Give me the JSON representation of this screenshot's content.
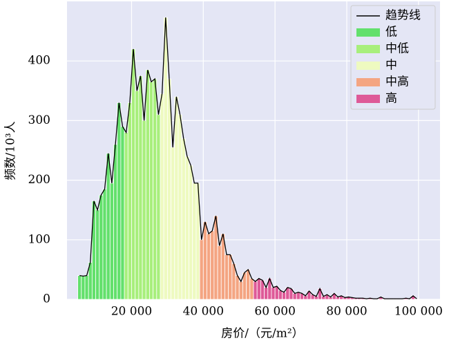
{
  "chart_data": {
    "type": "histogram",
    "xlabel": "房价/（元/m²）",
    "ylabel": "频数/10³人",
    "xlim": [
      2000,
      106000
    ],
    "ylim": [
      0,
      500
    ],
    "xticks": [
      {
        "value": 20000,
        "label": "20 000"
      },
      {
        "value": 40000,
        "label": "40 000"
      },
      {
        "value": 60000,
        "label": "60 000"
      },
      {
        "value": 80000,
        "label": "80 000"
      },
      {
        "value": 100000,
        "label": "100 000"
      }
    ],
    "yticks": [
      0,
      100,
      200,
      300,
      400
    ],
    "grid": true,
    "legend": "upper right",
    "trend": {
      "name": "趋势线",
      "color": "#000000"
    },
    "series": [
      {
        "name": "低",
        "color": "#63e06c",
        "bins": [
          5000,
          6000,
          7000,
          8000,
          9000,
          10000,
          11000,
          12000,
          13000,
          14000,
          15000,
          16000,
          17000,
          18000
        ],
        "values": [
          40,
          39,
          40,
          62,
          165,
          150,
          175,
          185,
          245,
          195,
          260,
          330,
          290
        ]
      },
      {
        "name": "中低",
        "color": "#a8ef7c",
        "bins": [
          18000,
          19000,
          20000,
          21000,
          22000,
          23000,
          24000,
          25000,
          26000,
          27000,
          28000
        ],
        "values": [
          280,
          330,
          420,
          350,
          375,
          300,
          385,
          365,
          370,
          310
        ]
      },
      {
        "name": "中",
        "color": "#eefac0",
        "bins": [
          28000,
          29000,
          30000,
          31000,
          32000,
          33000,
          34000,
          35000,
          36000,
          37000,
          38000,
          39000
        ],
        "values": [
          345,
          473,
          370,
          255,
          340,
          310,
          270,
          240,
          225,
          195,
          195
        ]
      },
      {
        "name": "中高",
        "color": "#f4a582",
        "bins": [
          39000,
          40000,
          41000,
          42000,
          43000,
          44000,
          45000,
          46000,
          47000,
          48000,
          49000,
          50000,
          51000,
          52000,
          53000,
          54000
        ],
        "values": [
          100,
          130,
          110,
          115,
          140,
          90,
          110,
          75,
          75,
          60,
          40,
          30,
          45,
          50,
          35
        ]
      },
      {
        "name": "高",
        "color": "#de5a98",
        "bins": [
          54000,
          55000,
          56000,
          57000,
          58000,
          59000,
          60000,
          61000,
          62000,
          63000,
          64000,
          65000,
          66000,
          67000,
          68000,
          69000,
          70000,
          71000,
          72000,
          73000,
          74000,
          75000,
          76000,
          77000,
          78000,
          79000,
          80000,
          81000,
          82000,
          83000,
          84000,
          85000,
          86000,
          87000,
          88000,
          89000,
          90000,
          91000,
          92000,
          93000,
          94000,
          95000,
          96000,
          97000,
          98000,
          99000,
          100000
        ],
        "values": [
          30,
          35,
          32,
          20,
          35,
          20,
          22,
          15,
          12,
          20,
          18,
          10,
          12,
          10,
          6,
          14,
          8,
          5,
          18,
          5,
          8,
          4,
          10,
          4,
          6,
          3,
          4,
          3,
          2,
          2,
          2,
          1,
          2,
          1,
          1,
          4,
          1,
          1,
          1,
          1,
          1,
          1,
          2,
          1,
          6,
          1
        ]
      }
    ]
  }
}
